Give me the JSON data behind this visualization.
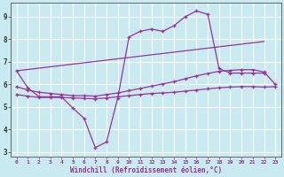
{
  "xlabel": "Windchill (Refroidissement éolien,°C)",
  "xlim": [
    -0.5,
    23.5
  ],
  "ylim": [
    2.8,
    9.6
  ],
  "yticks": [
    3,
    4,
    5,
    6,
    7,
    8,
    9
  ],
  "xticks": [
    0,
    1,
    2,
    3,
    4,
    5,
    6,
    7,
    8,
    9,
    10,
    11,
    12,
    13,
    14,
    15,
    16,
    17,
    18,
    19,
    20,
    21,
    22,
    23
  ],
  "bg_color": "#c8eaf0",
  "line_color": "#993399",
  "grid_color": "#ffffff",
  "lines": [
    {
      "x": [
        0,
        1,
        2,
        3,
        4,
        5,
        6,
        7,
        8,
        9,
        10,
        11,
        12,
        13,
        14,
        15,
        16,
        17,
        18,
        19,
        20,
        21,
        22
      ],
      "y": [
        6.6,
        5.85,
        5.45,
        5.45,
        5.45,
        4.95,
        4.5,
        3.2,
        3.45,
        5.4,
        8.1,
        8.35,
        8.45,
        8.35,
        8.6,
        9.0,
        9.25,
        9.1,
        6.7,
        6.5,
        6.5,
        6.5,
        6.5
      ],
      "marker": true
    },
    {
      "x": [
        0,
        22
      ],
      "y": [
        6.6,
        7.9
      ],
      "marker": false
    },
    {
      "x": [
        0,
        1,
        2,
        3,
        4,
        5,
        6,
        7,
        8,
        9,
        10,
        11,
        12,
        13,
        14,
        15,
        16,
        17,
        18,
        19,
        20,
        21,
        22,
        23
      ],
      "y": [
        5.9,
        5.75,
        5.65,
        5.6,
        5.55,
        5.5,
        5.5,
        5.48,
        5.55,
        5.62,
        5.72,
        5.82,
        5.92,
        6.02,
        6.12,
        6.25,
        6.38,
        6.48,
        6.58,
        6.62,
        6.65,
        6.65,
        6.55,
        6.0
      ],
      "marker": true
    },
    {
      "x": [
        0,
        1,
        2,
        3,
        4,
        5,
        6,
        7,
        8,
        9,
        10,
        11,
        12,
        13,
        14,
        15,
        16,
        17,
        18,
        19,
        20,
        21,
        22,
        23
      ],
      "y": [
        5.55,
        5.48,
        5.42,
        5.42,
        5.42,
        5.4,
        5.38,
        5.36,
        5.4,
        5.45,
        5.5,
        5.55,
        5.6,
        5.62,
        5.65,
        5.7,
        5.75,
        5.8,
        5.85,
        5.88,
        5.9,
        5.9,
        5.88,
        5.9
      ],
      "marker": true
    }
  ]
}
